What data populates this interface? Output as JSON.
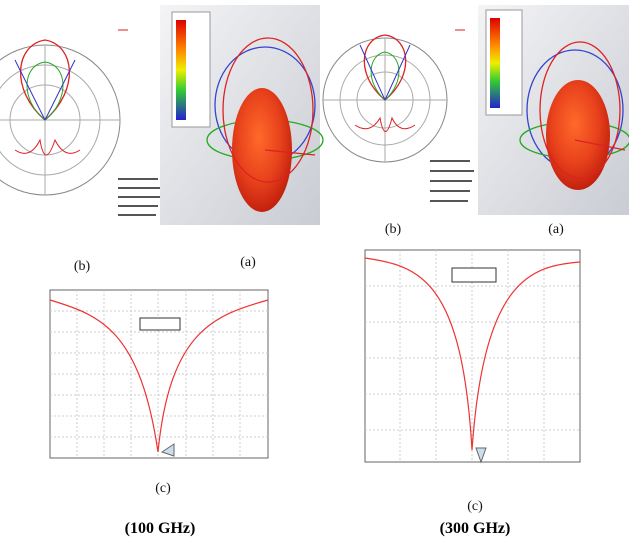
{
  "panels": [
    {
      "labels": [
        "(b)",
        "(a)",
        "(c)"
      ],
      "caption": "(100 GHz)"
    },
    {
      "labels": [
        "(b)",
        "(a)",
        "(c)"
      ],
      "caption": "(300 GHz)"
    }
  ]
}
